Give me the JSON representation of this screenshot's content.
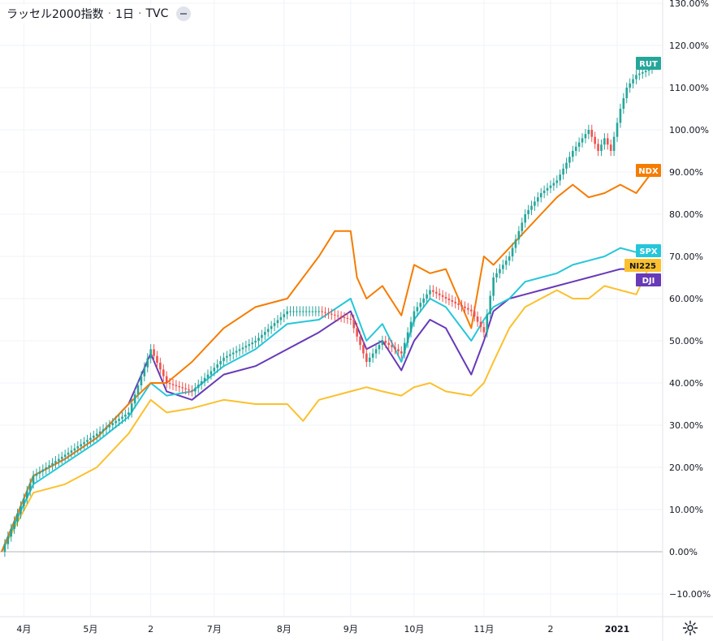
{
  "header": {
    "symbol": "ラッセル2000指数",
    "interval": "1日",
    "source": "TVC"
  },
  "icons": {
    "settings": "gear-icon",
    "collapse": "minus-icon"
  },
  "colors": {
    "RUT": "#26a69a",
    "RUT_down": "#ef5350",
    "NDX": "#f57c00",
    "SPX": "#26c6da",
    "NI225": "#fbc02d",
    "DJI": "#673ab7",
    "grid": "#f0f3fa",
    "axis_text": "#131722"
  },
  "chart_data": {
    "type": "line",
    "title": "",
    "xlabel": "",
    "ylabel": "",
    "y_unit": "%",
    "ylim": [
      -14,
      130
    ],
    "y_ticks": [
      "130.00%",
      "120.00%",
      "110.00%",
      "100.00%",
      "90.00%",
      "80.00%",
      "70.00%",
      "60.00%",
      "50.00%",
      "40.00%",
      "30.00%",
      "20.00%",
      "10.00%",
      "0.00%",
      "−10.00%"
    ],
    "y_tick_values": [
      130,
      120,
      110,
      100,
      90,
      80,
      70,
      60,
      50,
      40,
      30,
      20,
      10,
      0,
      -10
    ],
    "x_range": [
      0,
      205
    ],
    "x_ticks": [
      {
        "label": "4月",
        "x": 7
      },
      {
        "label": "5月",
        "x": 28
      },
      {
        "label": "2",
        "x": 47
      },
      {
        "label": "7月",
        "x": 67
      },
      {
        "label": "8月",
        "x": 89
      },
      {
        "label": "9月",
        "x": 110
      },
      {
        "label": "10月",
        "x": 130
      },
      {
        "label": "11月",
        "x": 152
      },
      {
        "label": "2",
        "x": 173
      },
      {
        "label": "2021",
        "x": 194
      }
    ],
    "grid": true,
    "baseline": 0,
    "legend": "right-edge last-value labels",
    "series": [
      {
        "name": "RUT",
        "style": "candles",
        "x": [
          0,
          10,
          20,
          30,
          40,
          47,
          52,
          60,
          70,
          80,
          90,
          100,
          110,
          115,
          120,
          126,
          130,
          135,
          140,
          148,
          152,
          155,
          160,
          165,
          170,
          175,
          180,
          185,
          188,
          190,
          192,
          195,
          197,
          200,
          203,
          205
        ],
        "y": [
          0,
          18,
          23,
          28,
          33,
          48,
          40,
          38,
          46,
          50,
          57,
          57,
          55,
          45,
          50,
          47,
          57,
          62,
          60,
          57,
          52,
          65,
          70,
          80,
          85,
          88,
          95,
          100,
          95,
          98,
          95,
          105,
          110,
          113,
          114,
          115
        ]
      },
      {
        "name": "NDX",
        "style": "line",
        "x": [
          0,
          10,
          20,
          30,
          40,
          47,
          52,
          60,
          70,
          80,
          90,
          100,
          105,
          110,
          112,
          115,
          120,
          126,
          130,
          135,
          140,
          148,
          152,
          155,
          160,
          165,
          170,
          175,
          180,
          185,
          190,
          195,
          200,
          205
        ],
        "y": [
          0,
          18,
          22,
          27,
          35,
          40,
          40,
          45,
          53,
          58,
          60,
          70,
          76,
          76,
          65,
          60,
          63,
          56,
          68,
          66,
          67,
          53,
          70,
          68,
          72,
          76,
          80,
          84,
          87,
          84,
          85,
          87,
          85,
          90
        ]
      },
      {
        "name": "SPX",
        "style": "line",
        "x": [
          0,
          10,
          20,
          30,
          40,
          47,
          52,
          60,
          70,
          80,
          90,
          100,
          110,
          115,
          120,
          126,
          130,
          135,
          140,
          148,
          152,
          155,
          160,
          165,
          170,
          175,
          180,
          185,
          190,
          195,
          200,
          205
        ],
        "y": [
          0,
          16,
          21,
          26,
          32,
          40,
          37,
          38,
          44,
          48,
          54,
          55,
          60,
          50,
          54,
          45,
          55,
          60,
          58,
          50,
          55,
          58,
          60,
          64,
          65,
          66,
          68,
          69,
          70,
          72,
          71,
          72
        ]
      },
      {
        "name": "NI225",
        "style": "line",
        "x": [
          0,
          10,
          20,
          30,
          40,
          47,
          52,
          60,
          70,
          80,
          90,
          95,
          100,
          110,
          115,
          120,
          126,
          130,
          135,
          140,
          148,
          152,
          155,
          160,
          165,
          170,
          175,
          180,
          185,
          190,
          195,
          200,
          205
        ],
        "y": [
          0,
          14,
          16,
          20,
          28,
          36,
          33,
          34,
          36,
          35,
          35,
          31,
          36,
          38,
          39,
          38,
          37,
          39,
          40,
          38,
          37,
          40,
          45,
          53,
          58,
          60,
          62,
          60,
          60,
          63,
          62,
          61,
          69
        ]
      },
      {
        "name": "DJI",
        "style": "line",
        "x": [
          0,
          10,
          20,
          30,
          40,
          47,
          52,
          60,
          70,
          80,
          90,
          100,
          110,
          115,
          120,
          126,
          130,
          135,
          140,
          148,
          152,
          155,
          160,
          165,
          170,
          175,
          180,
          185,
          190,
          195,
          200,
          205
        ],
        "y": [
          0,
          18,
          22,
          27,
          35,
          47,
          38,
          36,
          42,
          44,
          48,
          52,
          57,
          48,
          50,
          43,
          50,
          55,
          53,
          42,
          50,
          57,
          60,
          61,
          62,
          63,
          64,
          65,
          66,
          67,
          67,
          68
        ]
      }
    ],
    "end_labels": [
      {
        "name": "RUT",
        "value": 116
      },
      {
        "name": "NDX",
        "value": 90
      },
      {
        "name": "SPX",
        "value": 72
      },
      {
        "name": "NI225",
        "value": 69.5
      },
      {
        "name": "DJI",
        "value": 67
      }
    ]
  }
}
